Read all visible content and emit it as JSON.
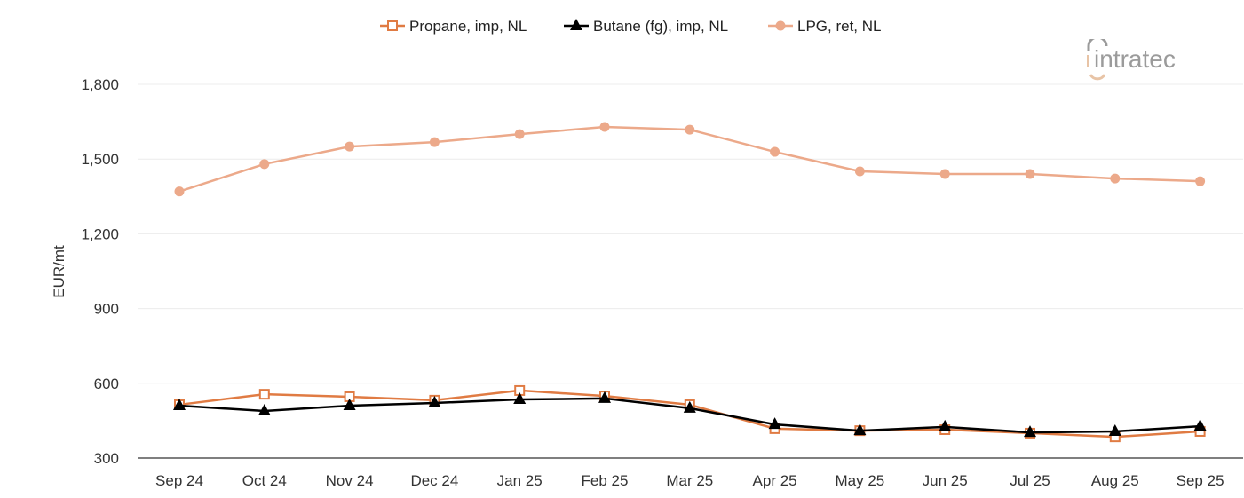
{
  "chart_data": {
    "type": "line",
    "title": "",
    "xlabel": "",
    "ylabel": "EUR/mt",
    "ylim": [
      300,
      1800
    ],
    "yticks": [
      300,
      600,
      900,
      1200,
      1500,
      1800
    ],
    "ytick_labels": [
      "300",
      "600",
      "900",
      "1,200",
      "1,500",
      "1,800"
    ],
    "grid": "horizontal",
    "legend_position": "top",
    "categories": [
      "Sep 24",
      "Oct 24",
      "Nov 24",
      "Dec 24",
      "Jan 25",
      "Feb 25",
      "Mar 25",
      "Apr 25",
      "May 25",
      "Jun 25",
      "Jul 25",
      "Aug 25",
      "Sep 25"
    ],
    "series": [
      {
        "name": "Propane, imp, NL",
        "color": "#e07b43",
        "marker": "open-square",
        "values": [
          514,
          556,
          546,
          532,
          571,
          549,
          514,
          418,
          410,
          414,
          400,
          385,
          407
        ]
      },
      {
        "name": "Butane (fg), imp, NL",
        "color": "#000000",
        "marker": "triangle",
        "values": [
          510,
          489,
          510,
          521,
          535,
          539,
          500,
          435,
          410,
          425,
          403,
          407,
          428
        ]
      },
      {
        "name": "LPG, ret, NL",
        "color": "#eca98a",
        "marker": "circle",
        "values": [
          1370,
          1480,
          1550,
          1568,
          1600,
          1629,
          1618,
          1529,
          1451,
          1440,
          1440,
          1422,
          1411
        ]
      }
    ]
  },
  "logo": {
    "text": "intratec",
    "colors": {
      "gray": "#9b9b9b",
      "beige": "#e8c4a6"
    }
  }
}
